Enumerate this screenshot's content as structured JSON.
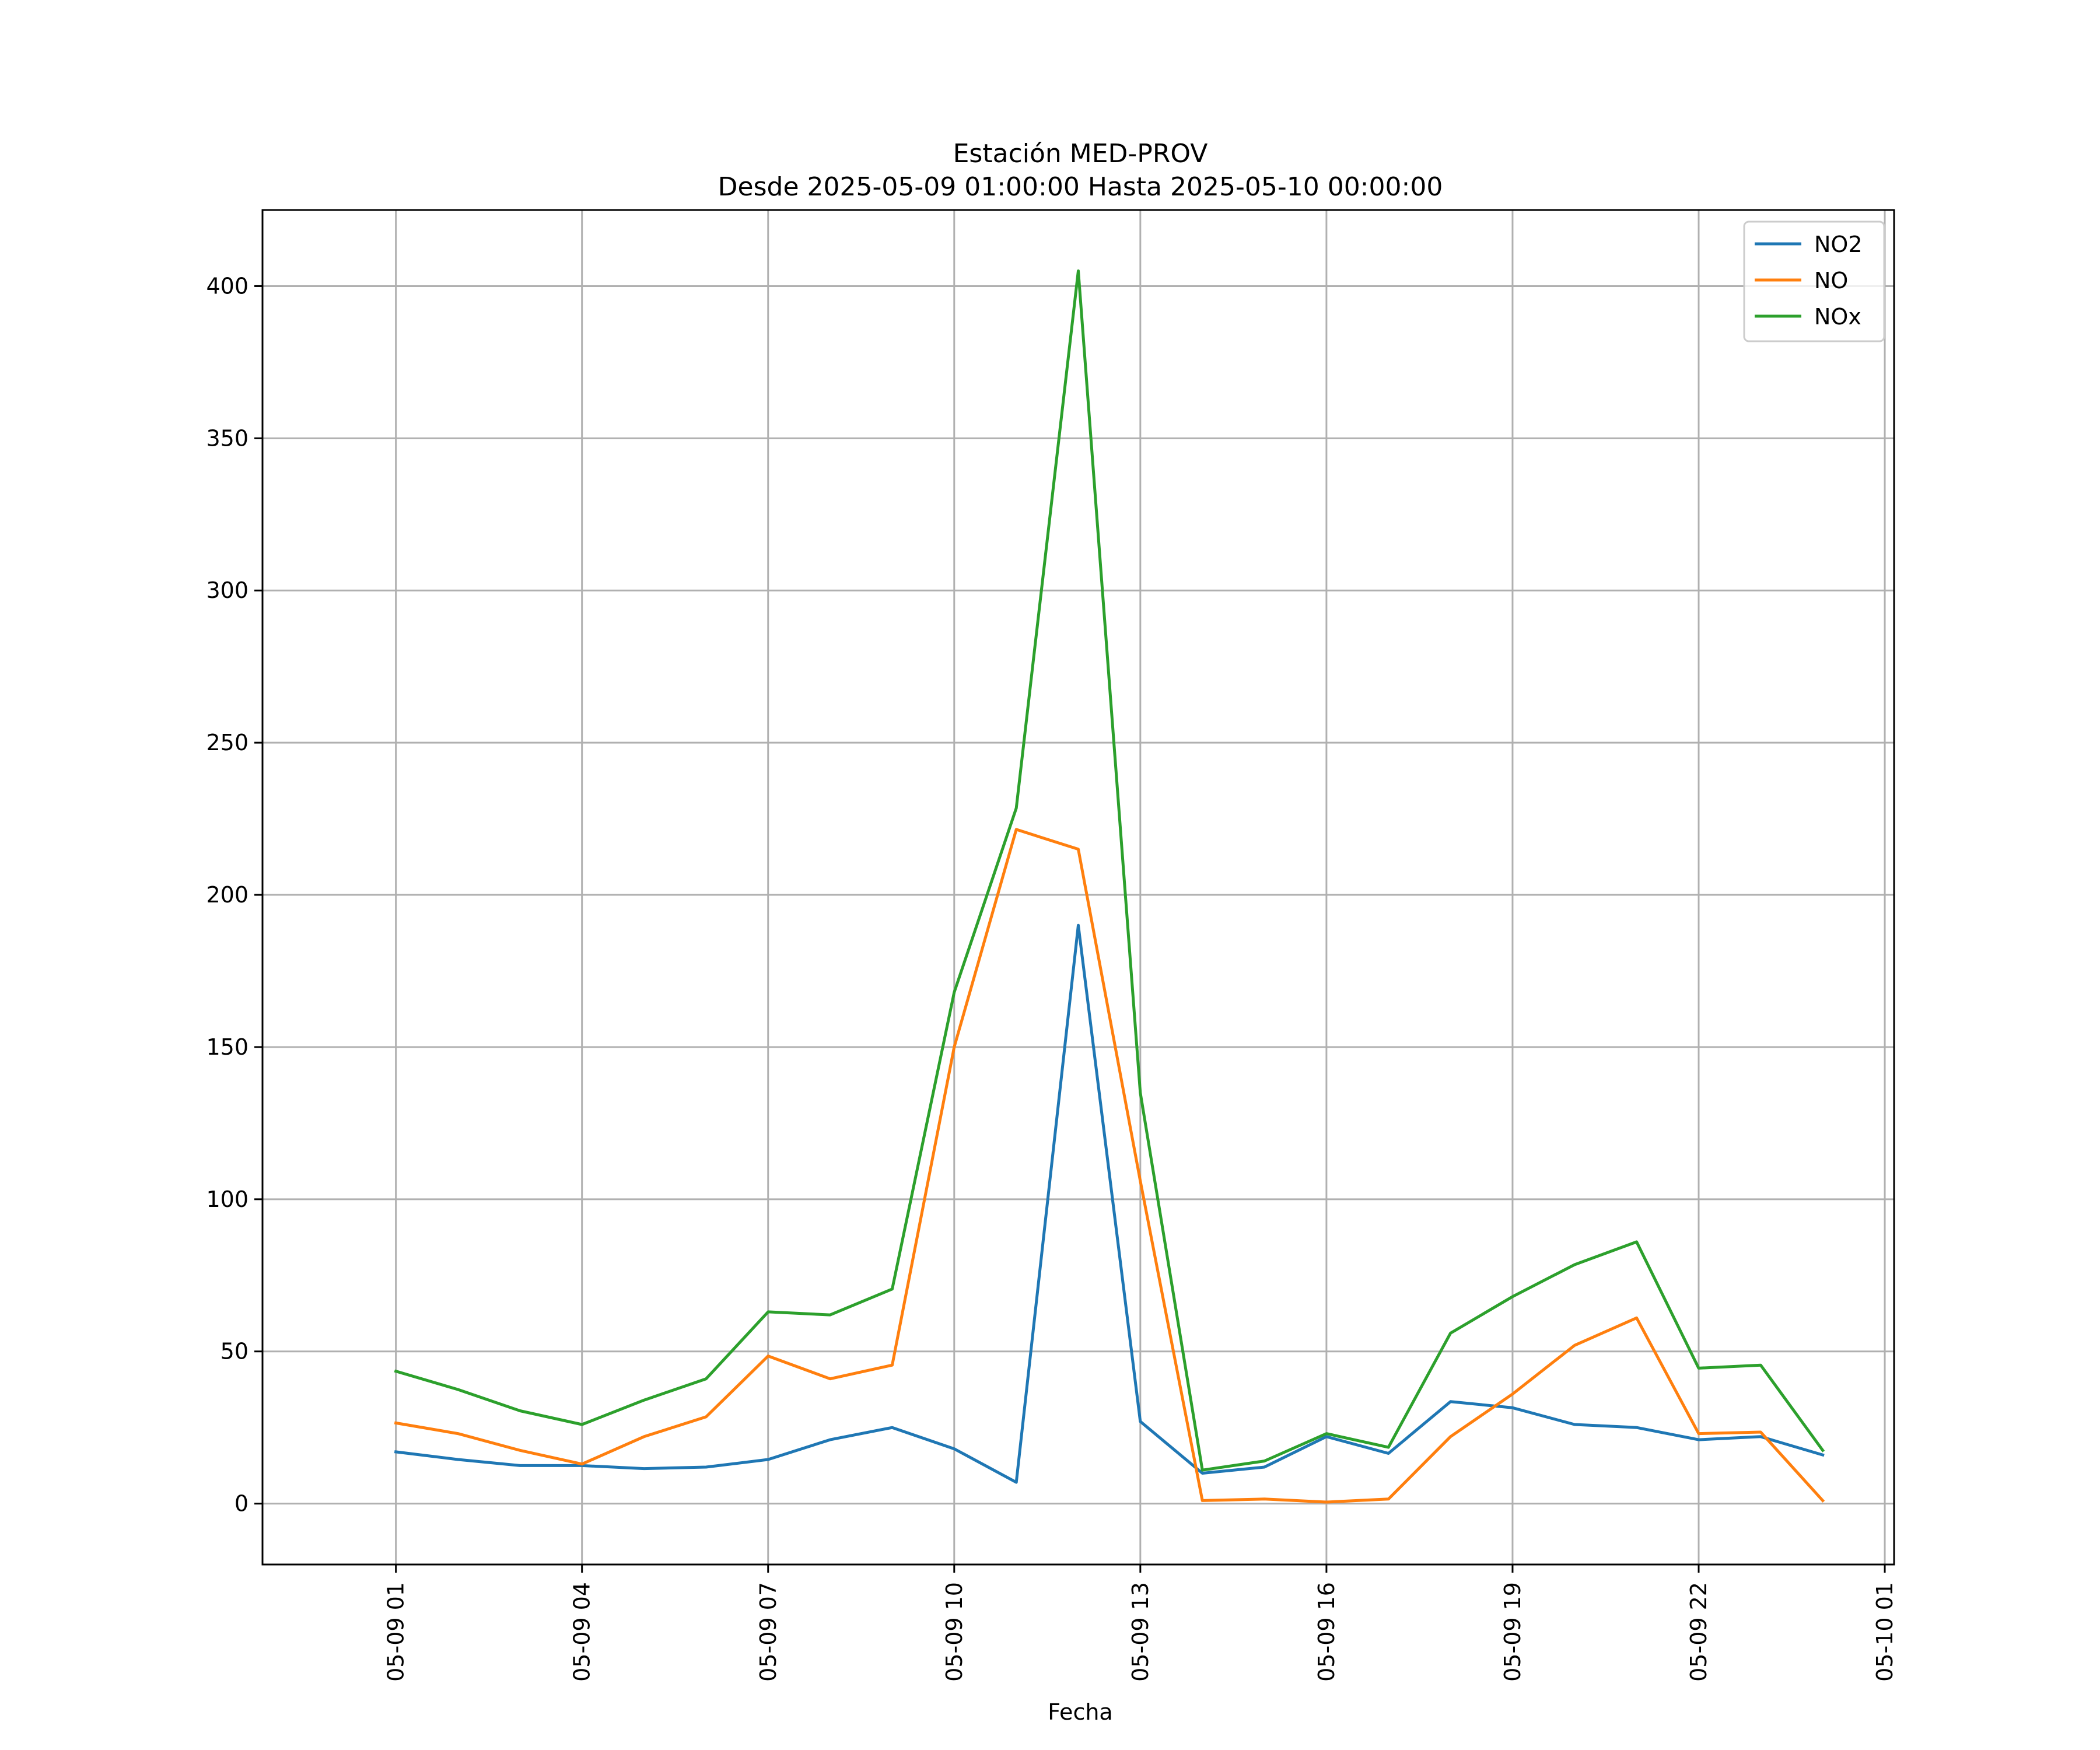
{
  "chart_data": {
    "type": "line",
    "title": "Estación MED-PROV",
    "subtitle": "Desde 2025-05-09 01:00:00 Hasta 2025-05-10 00:00:00",
    "xlabel": "Fecha",
    "ylabel": "",
    "x": [
      "2025-05-09 01:00",
      "2025-05-09 02:00",
      "2025-05-09 03:00",
      "2025-05-09 04:00",
      "2025-05-09 05:00",
      "2025-05-09 06:00",
      "2025-05-09 07:00",
      "2025-05-09 08:00",
      "2025-05-09 09:00",
      "2025-05-09 10:00",
      "2025-05-09 11:00",
      "2025-05-09 12:00",
      "2025-05-09 13:00",
      "2025-05-09 14:00",
      "2025-05-09 15:00",
      "2025-05-09 16:00",
      "2025-05-09 17:00",
      "2025-05-09 18:00",
      "2025-05-09 19:00",
      "2025-05-09 20:00",
      "2025-05-09 21:00",
      "2025-05-09 22:00",
      "2025-05-09 23:00",
      "2025-05-10 00:00"
    ],
    "series": [
      {
        "name": "NO2",
        "color": "#1f77b4",
        "values": [
          17,
          14.5,
          12.5,
          12.5,
          11.5,
          12,
          14.5,
          21,
          25,
          18,
          7,
          190,
          27,
          10,
          12,
          22,
          16.5,
          33.5,
          31.5,
          26,
          25,
          21,
          22,
          16
        ]
      },
      {
        "name": "NO",
        "color": "#ff7f0e",
        "values": [
          26.5,
          23,
          17.5,
          13,
          22,
          28.5,
          48.5,
          41,
          45.5,
          150,
          221.5,
          215,
          106,
          1,
          1.5,
          0.5,
          1.5,
          22,
          36,
          52,
          61,
          23,
          23.5,
          1
        ]
      },
      {
        "name": "NOx",
        "color": "#2ca02c",
        "values": [
          43.5,
          37.5,
          30.5,
          26,
          34,
          41,
          63,
          62,
          70.5,
          168,
          228.5,
          405,
          135,
          11,
          14,
          23,
          18.5,
          56,
          68,
          78.5,
          86,
          44.5,
          45.5,
          17.5
        ]
      }
    ],
    "x_ticks": [
      "05-09 01",
      "05-09 04",
      "05-09 07",
      "05-09 10",
      "05-09 13",
      "05-09 16",
      "05-09 19",
      "05-09 22",
      "05-10 01"
    ],
    "y_ticks": [
      0,
      50,
      100,
      150,
      200,
      250,
      300,
      350,
      400
    ],
    "ylim": [
      -20,
      425
    ],
    "xlim": [
      "2025-05-08 22:51",
      "2025-05-10 01:09"
    ],
    "grid": true,
    "legend_position": "top-right"
  }
}
